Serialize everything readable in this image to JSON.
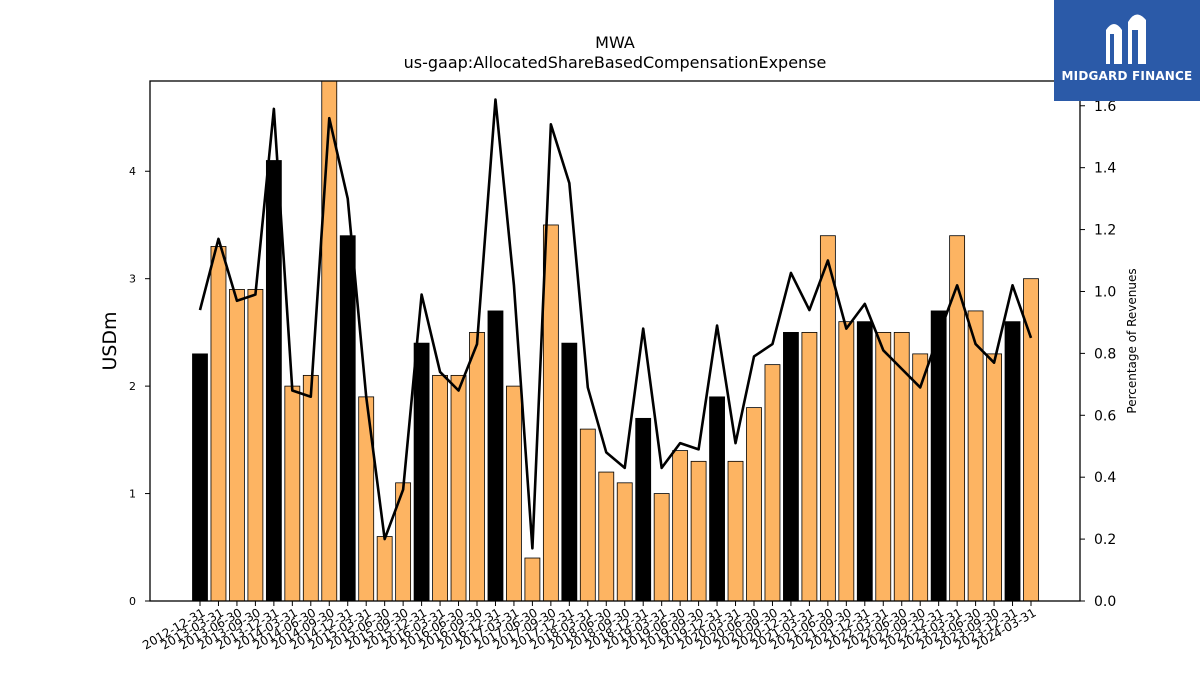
{
  "logo": {
    "text": "MIDGARD FINANCE"
  },
  "colors": {
    "bar_quarter": "#fdb462",
    "bar_year_end": "#000000",
    "line": "#000000"
  },
  "chart_data": {
    "type": "bar",
    "title": "MWA",
    "subtitle": "us-gaap:AllocatedShareBasedCompensationExpense",
    "ylabel": "USDm",
    "y2label": "Percentage of Revenues",
    "ylim": [
      0,
      4.84
    ],
    "y2lim": [
      0,
      1.68
    ],
    "yticks": [
      0,
      1,
      2,
      3,
      4
    ],
    "y2ticks": [
      0.0,
      0.2,
      0.4,
      0.6,
      0.8,
      1.0,
      1.2,
      1.4,
      1.6
    ],
    "categories": [
      "2012-12-31",
      "2013-03-31",
      "2013-06-30",
      "2013-09-30",
      "2013-12-31",
      "2014-03-31",
      "2014-06-30",
      "2014-09-30",
      "2014-12-31",
      "2015-03-31",
      "2015-06-30",
      "2015-09-30",
      "2015-12-31",
      "2016-03-31",
      "2016-06-30",
      "2016-09-30",
      "2016-12-31",
      "2017-03-31",
      "2017-06-30",
      "2017-09-30",
      "2017-12-31",
      "2018-03-31",
      "2018-06-30",
      "2018-09-30",
      "2018-12-31",
      "2019-03-31",
      "2019-06-30",
      "2019-09-30",
      "2019-12-31",
      "2020-03-31",
      "2020-06-30",
      "2020-09-30",
      "2020-12-31",
      "2021-03-31",
      "2021-06-30",
      "2021-09-30",
      "2021-12-31",
      "2022-03-31",
      "2022-06-30",
      "2022-09-30",
      "2022-12-31",
      "2023-03-31",
      "2023-06-30",
      "2023-09-30",
      "2023-12-31",
      "2024-03-31"
    ],
    "series": [
      {
        "type": "bar",
        "values": [
          2.3,
          3.3,
          2.9,
          2.9,
          4.1,
          2.0,
          2.1,
          4.84,
          3.4,
          1.9,
          0.6,
          1.1,
          2.4,
          2.1,
          2.1,
          2.5,
          2.7,
          2.0,
          0.4,
          3.5,
          2.4,
          1.6,
          1.2,
          1.1,
          1.7,
          1.0,
          1.4,
          1.3,
          1.9,
          1.3,
          1.8,
          2.2,
          2.5,
          2.5,
          3.4,
          2.6,
          2.6,
          2.5,
          2.5,
          2.3,
          2.7,
          3.4,
          2.7,
          2.3,
          2.6,
          3.0
        ],
        "highlight": [
          true,
          false,
          false,
          false,
          true,
          false,
          false,
          false,
          true,
          false,
          false,
          false,
          true,
          false,
          false,
          false,
          true,
          false,
          false,
          false,
          true,
          false,
          false,
          false,
          true,
          false,
          false,
          false,
          true,
          false,
          false,
          false,
          true,
          false,
          false,
          false,
          true,
          false,
          false,
          false,
          true,
          false,
          false,
          false,
          true,
          false
        ]
      },
      {
        "type": "line",
        "axis": "right",
        "values": [
          0.94,
          1.17,
          0.97,
          0.99,
          1.59,
          0.68,
          0.66,
          1.56,
          1.3,
          0.66,
          0.2,
          0.36,
          0.99,
          0.74,
          0.68,
          0.83,
          1.62,
          1.02,
          0.17,
          1.54,
          1.35,
          0.69,
          0.48,
          0.43,
          0.88,
          0.43,
          0.51,
          0.49,
          0.89,
          0.51,
          0.79,
          0.83,
          1.06,
          0.94,
          1.1,
          0.88,
          0.96,
          0.81,
          0.75,
          0.69,
          0.86,
          1.02,
          0.83,
          0.77,
          1.02,
          0.85
        ]
      }
    ]
  }
}
